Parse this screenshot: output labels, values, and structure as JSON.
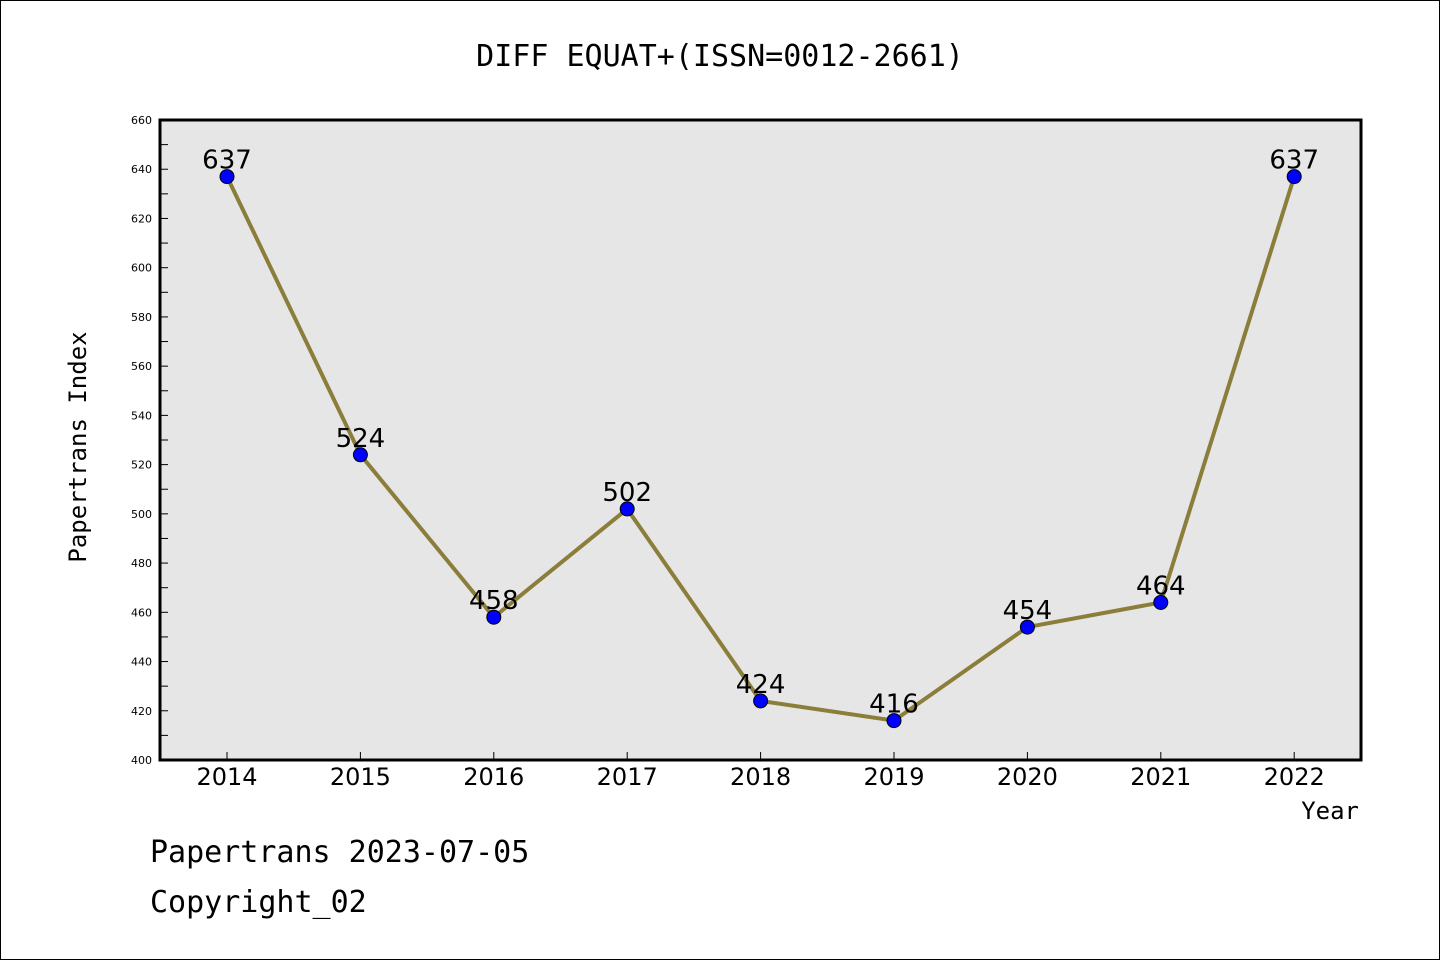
{
  "chart_data": {
    "type": "line",
    "title": "DIFF EQUAT+(ISSN=0012-2661)",
    "xlabel": "Year",
    "ylabel": "Papertrans Index",
    "categories": [
      "2014",
      "2015",
      "2016",
      "2017",
      "2018",
      "2019",
      "2020",
      "2021",
      "2022"
    ],
    "series": [
      {
        "values": [
          637,
          524,
          458,
          502,
          424,
          416,
          454,
          464,
          637
        ]
      }
    ],
    "data_labels": [
      "637",
      "524",
      "458",
      "502",
      "424",
      "416",
      "454",
      "464",
      "637"
    ],
    "ylim": [
      400,
      660
    ],
    "yticks": [
      "400",
      "420",
      "440",
      "460",
      "480",
      "500",
      "520",
      "540",
      "560",
      "580",
      "600",
      "620",
      "640",
      "660"
    ],
    "grid": false,
    "colors": {
      "line": "#8b7d3a",
      "marker": "#0000ff",
      "plot_background": "#e6e6e6"
    }
  },
  "footer": {
    "date_text": "Papertrans 2023-07-05",
    "copyright_text": "Copyright_02"
  }
}
